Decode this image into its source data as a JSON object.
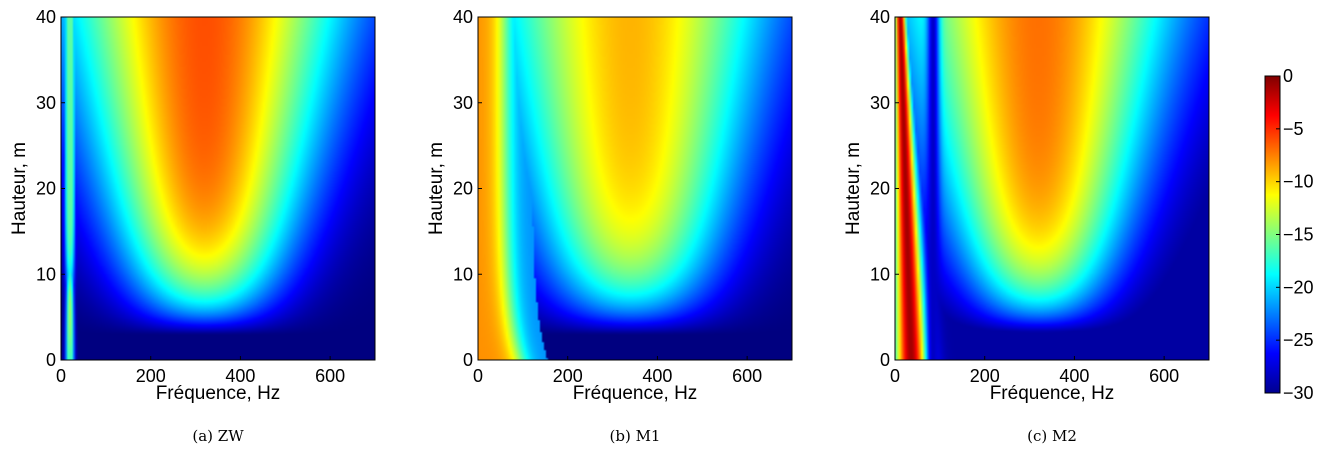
{
  "figure": {
    "colormap": "jet",
    "colorbar": {
      "range": [
        -30,
        0
      ],
      "ticks": [
        0,
        -5,
        -10,
        -15,
        -20,
        -25,
        -30
      ],
      "tick_labels": [
        "0",
        "−5",
        "−10",
        "−15",
        "−20",
        "−25",
        "−30"
      ]
    }
  },
  "chart_data": [
    {
      "type": "heatmap",
      "caption": "(a)  ZW",
      "xlabel": "Fréquence, Hz",
      "ylabel": "Hauteur, m",
      "xlim": [
        0,
        700
      ],
      "ylim": [
        0,
        40
      ],
      "zlim": [
        -30,
        0
      ],
      "xticks": [
        0,
        200,
        400,
        600
      ],
      "xtick_labels": [
        "0",
        "200",
        "400",
        "600"
      ],
      "yticks": [
        0,
        10,
        20,
        30,
        40
      ],
      "ytick_labels": [
        "0",
        "10",
        "20",
        "30",
        "40"
      ],
      "notes": "U-shaped high-level region centred near 320 Hz, max about -7 at top; dark blue (-30) below about 4 m; narrow bright strip near 20 Hz at low heights"
    },
    {
      "type": "heatmap",
      "caption": "(b)  M1",
      "xlabel": "Fréquence, Hz",
      "ylabel": "Hauteur, m",
      "xlim": [
        0,
        700
      ],
      "ylim": [
        0,
        40
      ],
      "zlim": [
        -30,
        0
      ],
      "xticks": [
        0,
        200,
        400,
        600
      ],
      "xtick_labels": [
        "0",
        "200",
        "400",
        "600"
      ],
      "yticks": [
        0,
        10,
        20,
        30,
        40
      ],
      "ytick_labels": [
        "0",
        "10",
        "20",
        "30",
        "40"
      ],
      "notes": "Orange band (about -8) at low frequencies up to about 60 Hz over all heights; U-shaped region centred near 340 Hz, max about -9; dark blue below about 5 m above 150 Hz"
    },
    {
      "type": "heatmap",
      "caption": "(c)  M2",
      "xlabel": "Fréquence, Hz",
      "ylabel": "Hauteur, m",
      "xlim": [
        0,
        700
      ],
      "ylim": [
        0,
        40
      ],
      "zlim": [
        -30,
        0
      ],
      "xticks": [
        0,
        200,
        400,
        600
      ],
      "xtick_labels": [
        "0",
        "200",
        "400",
        "600"
      ],
      "yticks": [
        0,
        10,
        20,
        30,
        40
      ],
      "ytick_labels": [
        "0",
        "10",
        "20",
        "30",
        "40"
      ],
      "notes": "Dark red band (about -1) slanting from about 60 Hz at bottom to about 20 Hz at top; blue notch near 80-100 Hz; U-shaped region centred near 320 Hz, max about -7"
    }
  ]
}
